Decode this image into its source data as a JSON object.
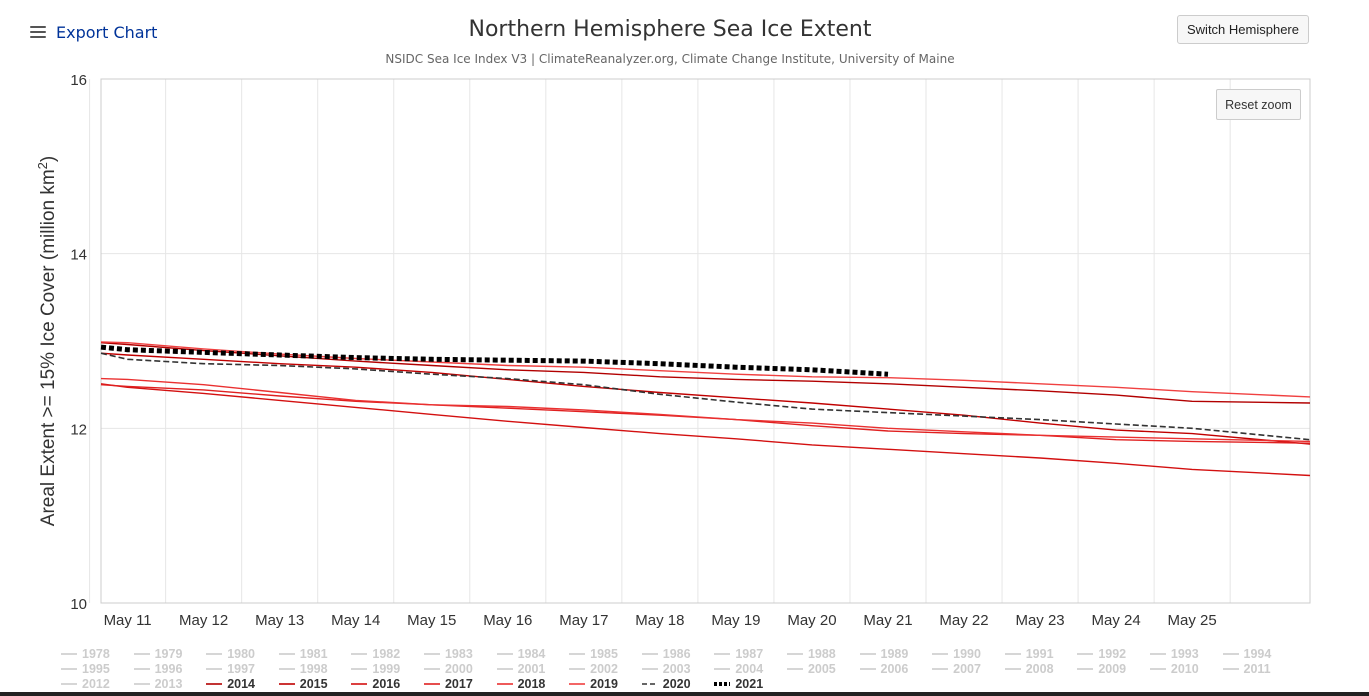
{
  "header": {
    "menu_label": "Export Chart",
    "title": "Northern Hemisphere Sea Ice Extent",
    "subtitle": "NSIDC Sea Ice Index V3 | ClimateReanalyzer.org, Climate Change Institute, University of Maine",
    "switch_label": "Switch Hemisphere",
    "reset_zoom_label": "Reset zoom",
    "menu_icon": "hamburger-menu-icon"
  },
  "chart_data": {
    "type": "line",
    "title": "Northern Hemisphere Sea Ice Extent",
    "subtitle": "NSIDC Sea Ice Index V3 | ClimateReanalyzer.org, Climate Change Institute, University of Maine",
    "ylabel": "Areal Extent >= 15% Ice Cover (million km²)",
    "xlabel": "",
    "ylim": [
      10,
      16
    ],
    "yticks": [
      10,
      12,
      14,
      16
    ],
    "x": [
      10.65,
      11,
      12,
      13,
      14,
      15,
      16,
      17,
      18,
      19,
      20,
      21,
      22,
      23,
      24,
      25,
      26.55
    ],
    "xlim": [
      10.65,
      26.55
    ],
    "xticks": [
      {
        "value": 11,
        "label": "May 11"
      },
      {
        "value": 12,
        "label": "May 12"
      },
      {
        "value": 13,
        "label": "May 13"
      },
      {
        "value": 14,
        "label": "May 14"
      },
      {
        "value": 15,
        "label": "May 15"
      },
      {
        "value": 16,
        "label": "May 16"
      },
      {
        "value": 17,
        "label": "May 17"
      },
      {
        "value": 18,
        "label": "May 18"
      },
      {
        "value": 19,
        "label": "May 19"
      },
      {
        "value": 20,
        "label": "May 20"
      },
      {
        "value": 21,
        "label": "May 21"
      },
      {
        "value": 22,
        "label": "May 22"
      },
      {
        "value": 23,
        "label": "May 23"
      },
      {
        "value": 24,
        "label": "May 24"
      },
      {
        "value": 25,
        "label": "May 25"
      }
    ],
    "grid": true,
    "legend_position": "bottom",
    "series": [
      {
        "name": "2014",
        "color": "#b20000",
        "dash": "solid",
        "values": [
          12.98,
          12.96,
          12.89,
          12.83,
          12.77,
          12.72,
          12.67,
          12.64,
          12.59,
          12.56,
          12.54,
          12.51,
          12.47,
          12.43,
          12.38,
          12.31,
          12.29
        ]
      },
      {
        "name": "2015",
        "color": "#c00000",
        "dash": "solid",
        "values": [
          12.86,
          12.84,
          12.79,
          12.74,
          12.7,
          12.64,
          12.56,
          12.48,
          12.41,
          12.35,
          12.29,
          12.22,
          12.15,
          12.06,
          11.98,
          11.94,
          11.82
        ]
      },
      {
        "name": "2016",
        "color": "#d31010",
        "dash": "solid",
        "values": [
          12.51,
          12.47,
          12.4,
          12.32,
          12.24,
          12.16,
          12.08,
          12.01,
          11.94,
          11.88,
          11.81,
          11.76,
          11.71,
          11.66,
          11.6,
          11.53,
          11.46
        ]
      },
      {
        "name": "2017",
        "color": "#e02020",
        "dash": "solid",
        "values": [
          12.5,
          12.48,
          12.44,
          12.37,
          12.31,
          12.27,
          12.23,
          12.19,
          12.15,
          12.1,
          12.03,
          11.97,
          11.94,
          11.92,
          11.87,
          11.85,
          11.83
        ]
      },
      {
        "name": "2018",
        "color": "#ea3030",
        "dash": "solid",
        "values": [
          12.57,
          12.56,
          12.5,
          12.41,
          12.32,
          12.27,
          12.25,
          12.21,
          12.16,
          12.1,
          12.06,
          12.0,
          11.96,
          11.92,
          11.9,
          11.88,
          11.85
        ]
      },
      {
        "name": "2019",
        "color": "#f04040",
        "dash": "solid",
        "values": [
          12.99,
          12.98,
          12.91,
          12.85,
          12.8,
          12.76,
          12.72,
          12.7,
          12.66,
          12.62,
          12.59,
          12.58,
          12.55,
          12.51,
          12.47,
          12.42,
          12.36
        ]
      },
      {
        "name": "2020",
        "color": "#333333",
        "dash": "dash",
        "values": [
          12.86,
          12.79,
          12.74,
          12.72,
          12.68,
          12.62,
          12.57,
          12.5,
          12.39,
          12.3,
          12.22,
          12.18,
          12.14,
          12.1,
          12.05,
          12.0,
          11.87
        ]
      },
      {
        "name": "2021",
        "color": "#000000",
        "dash": "dot",
        "values": [
          12.93,
          12.9,
          12.87,
          12.84,
          12.81,
          12.79,
          12.78,
          12.77,
          12.74,
          12.7,
          12.67,
          12.62,
          null,
          null,
          null,
          null,
          null
        ]
      }
    ],
    "hidden_series": [
      "1978",
      "1979",
      "1980",
      "1981",
      "1982",
      "1983",
      "1984",
      "1985",
      "1986",
      "1987",
      "1988",
      "1989",
      "1990",
      "1991",
      "1992",
      "1993",
      "1994",
      "1995",
      "1996",
      "1997",
      "1998",
      "1999",
      "2000",
      "2001",
      "2002",
      "2003",
      "2004",
      "2005",
      "2006",
      "2007",
      "2008",
      "2009",
      "2010",
      "2011",
      "2012",
      "2013"
    ]
  },
  "legend": {
    "items": [
      {
        "label": "1978",
        "active": false,
        "color": "#cccccc",
        "dash": "solid"
      },
      {
        "label": "1979",
        "active": false,
        "color": "#cccccc",
        "dash": "solid"
      },
      {
        "label": "1980",
        "active": false,
        "color": "#cccccc",
        "dash": "solid"
      },
      {
        "label": "1981",
        "active": false,
        "color": "#cccccc",
        "dash": "solid"
      },
      {
        "label": "1982",
        "active": false,
        "color": "#cccccc",
        "dash": "solid"
      },
      {
        "label": "1983",
        "active": false,
        "color": "#cccccc",
        "dash": "solid"
      },
      {
        "label": "1984",
        "active": false,
        "color": "#cccccc",
        "dash": "solid"
      },
      {
        "label": "1985",
        "active": false,
        "color": "#cccccc",
        "dash": "solid"
      },
      {
        "label": "1986",
        "active": false,
        "color": "#cccccc",
        "dash": "solid"
      },
      {
        "label": "1987",
        "active": false,
        "color": "#cccccc",
        "dash": "solid"
      },
      {
        "label": "1988",
        "active": false,
        "color": "#cccccc",
        "dash": "solid"
      },
      {
        "label": "1989",
        "active": false,
        "color": "#cccccc",
        "dash": "solid"
      },
      {
        "label": "1990",
        "active": false,
        "color": "#cccccc",
        "dash": "solid"
      },
      {
        "label": "1991",
        "active": false,
        "color": "#cccccc",
        "dash": "solid"
      },
      {
        "label": "1992",
        "active": false,
        "color": "#cccccc",
        "dash": "solid"
      },
      {
        "label": "1993",
        "active": false,
        "color": "#cccccc",
        "dash": "solid"
      },
      {
        "label": "1994",
        "active": false,
        "color": "#cccccc",
        "dash": "solid"
      },
      {
        "label": "1995",
        "active": false,
        "color": "#cccccc",
        "dash": "solid"
      },
      {
        "label": "1996",
        "active": false,
        "color": "#cccccc",
        "dash": "solid"
      },
      {
        "label": "1997",
        "active": false,
        "color": "#cccccc",
        "dash": "solid"
      },
      {
        "label": "1998",
        "active": false,
        "color": "#cccccc",
        "dash": "solid"
      },
      {
        "label": "1999",
        "active": false,
        "color": "#cccccc",
        "dash": "solid"
      },
      {
        "label": "2000",
        "active": false,
        "color": "#cccccc",
        "dash": "solid"
      },
      {
        "label": "2001",
        "active": false,
        "color": "#cccccc",
        "dash": "solid"
      },
      {
        "label": "2002",
        "active": false,
        "color": "#cccccc",
        "dash": "solid"
      },
      {
        "label": "2003",
        "active": false,
        "color": "#cccccc",
        "dash": "solid"
      },
      {
        "label": "2004",
        "active": false,
        "color": "#cccccc",
        "dash": "solid"
      },
      {
        "label": "2005",
        "active": false,
        "color": "#cccccc",
        "dash": "solid"
      },
      {
        "label": "2006",
        "active": false,
        "color": "#cccccc",
        "dash": "solid"
      },
      {
        "label": "2007",
        "active": false,
        "color": "#cccccc",
        "dash": "solid"
      },
      {
        "label": "2008",
        "active": false,
        "color": "#cccccc",
        "dash": "solid"
      },
      {
        "label": "2009",
        "active": false,
        "color": "#cccccc",
        "dash": "solid"
      },
      {
        "label": "2010",
        "active": false,
        "color": "#cccccc",
        "dash": "solid"
      },
      {
        "label": "2011",
        "active": false,
        "color": "#cccccc",
        "dash": "solid"
      },
      {
        "label": "2012",
        "active": false,
        "color": "#cccccc",
        "dash": "solid"
      },
      {
        "label": "2013",
        "active": false,
        "color": "#cccccc",
        "dash": "solid"
      },
      {
        "label": "2014",
        "active": true,
        "color": "#b20000",
        "dash": "solid"
      },
      {
        "label": "2015",
        "active": true,
        "color": "#c00000",
        "dash": "solid"
      },
      {
        "label": "2016",
        "active": true,
        "color": "#d31010",
        "dash": "solid"
      },
      {
        "label": "2017",
        "active": true,
        "color": "#e02020",
        "dash": "solid"
      },
      {
        "label": "2018",
        "active": true,
        "color": "#ea3030",
        "dash": "solid"
      },
      {
        "label": "2019",
        "active": true,
        "color": "#f04040",
        "dash": "solid"
      },
      {
        "label": "2020",
        "active": true,
        "color": "#333333",
        "dash": "dash"
      },
      {
        "label": "2021",
        "active": true,
        "color": "#000000",
        "dash": "dot"
      }
    ]
  },
  "colors": {
    "grid": "#e6e6e6",
    "axis_text": "#333333",
    "link": "#003399"
  }
}
